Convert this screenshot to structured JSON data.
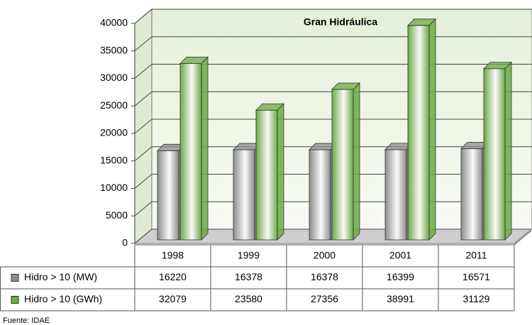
{
  "chart_data": {
    "type": "bar",
    "title": "Gran Hidráulica",
    "categories": [
      "1998",
      "1999",
      "2000",
      "2001",
      "2011"
    ],
    "series": [
      {
        "name": "Hidro > 10 (MW)",
        "color": "#8c8c8c",
        "values": [
          16220,
          16378,
          16378,
          16399,
          16571
        ]
      },
      {
        "name": "Hidro > 10 (GWh)",
        "color": "#6aaa44",
        "values": [
          32079,
          23580,
          27356,
          38991,
          31129
        ]
      }
    ],
    "ylim": [
      0,
      40000
    ],
    "yticks": [
      0,
      5000,
      10000,
      15000,
      20000,
      25000,
      30000,
      35000,
      40000
    ],
    "grid": true,
    "source": "Fuente: IDAE"
  }
}
